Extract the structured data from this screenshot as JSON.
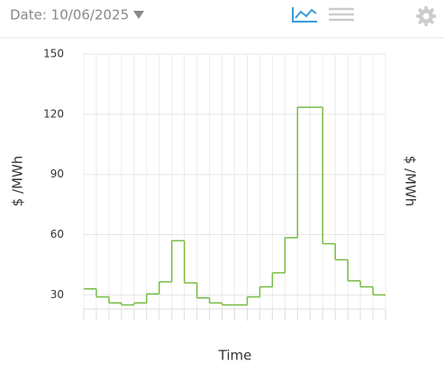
{
  "header": {
    "date_label": "Date: 10/06/2025"
  },
  "chart_data": {
    "type": "step",
    "y_label": "$ /MWh",
    "y2_label": "$ /MWh",
    "x_label": "Time",
    "categories": [
      null,
      null,
      null,
      null,
      null,
      null,
      null,
      null,
      null,
      null,
      null,
      null,
      null,
      null,
      null,
      null,
      null,
      null,
      null,
      null,
      null,
      null,
      null,
      null
    ],
    "values": [
      33,
      29,
      26,
      25,
      26,
      30.5,
      36.5,
      57,
      36,
      28.5,
      26,
      25,
      25,
      29,
      34,
      41,
      58.5,
      123.5,
      123.5,
      55.5,
      47.5,
      37,
      34,
      30
    ],
    "color": "#77bb41",
    "ylim": [
      23,
      150
    ],
    "yticks": [
      30,
      60,
      90,
      120,
      150
    ],
    "grid": true
  }
}
